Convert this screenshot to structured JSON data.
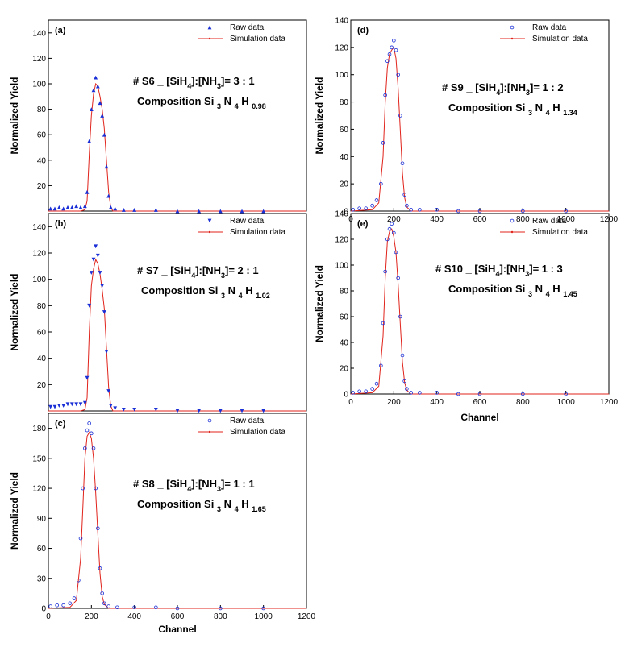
{
  "chart_data": [
    {
      "panel": "(a)",
      "type": "scatter",
      "ylabel": "Normalized Yield",
      "xlabel": "",
      "xlim": [
        0,
        1200
      ],
      "ylim": [
        0,
        150
      ],
      "xticks": [],
      "yticks": [
        20,
        40,
        60,
        80,
        100,
        120,
        140
      ],
      "raw_marker": "triangle-up",
      "legend": {
        "raw": "Raw data",
        "sim": "Simulation data",
        "position": "top-right"
      },
      "annotation": {
        "pre": "# S6 _ [SiH",
        "sub1": "4",
        "mid": "]:[NH",
        "sub2": "3",
        "post": "]= 3 : 1"
      },
      "composition": {
        "pre": "Composition Si ",
        "s1": "3",
        "n": " N ",
        "s2": "4",
        "h": " H ",
        "s3": "0.98"
      },
      "peak": {
        "center": 225,
        "height": 100,
        "left_edge": 180,
        "right_edge": 285
      },
      "series": [
        {
          "name": "Raw data",
          "x": [
            10,
            30,
            50,
            70,
            90,
            110,
            130,
            150,
            170,
            180,
            190,
            200,
            210,
            220,
            230,
            240,
            250,
            260,
            270,
            280,
            290,
            310,
            350,
            400,
            500,
            600,
            700,
            800,
            900,
            1000
          ],
          "y": [
            2,
            2,
            3,
            2,
            3,
            3,
            4,
            3,
            4,
            15,
            55,
            80,
            95,
            105,
            98,
            85,
            75,
            60,
            35,
            12,
            3,
            2,
            1,
            1,
            1,
            0,
            0,
            0,
            0,
            0
          ]
        },
        {
          "name": "Simulation data",
          "x": [
            0,
            100,
            150,
            170,
            180,
            190,
            200,
            210,
            220,
            230,
            240,
            250,
            260,
            270,
            280,
            290,
            300,
            400,
            1200
          ],
          "y": [
            0,
            0,
            0,
            1,
            8,
            45,
            75,
            92,
            100,
            98,
            90,
            80,
            65,
            40,
            15,
            3,
            0,
            0,
            0
          ]
        }
      ]
    },
    {
      "panel": "(b)",
      "type": "scatter",
      "ylabel": "Normalized Yield",
      "xlabel": "",
      "xlim": [
        0,
        1200
      ],
      "ylim": [
        0,
        150
      ],
      "xticks": [],
      "yticks": [
        20,
        40,
        60,
        80,
        100,
        120,
        140
      ],
      "raw_marker": "triangle-down",
      "legend": {
        "raw": "Raw data",
        "sim": "Simulation data",
        "position": "top-right"
      },
      "annotation": {
        "pre": "# S7 _ [SiH",
        "sub1": "4",
        "mid": "]:[NH",
        "sub2": "3",
        "post": "]= 2 : 1"
      },
      "composition": {
        "pre": "Composition Si ",
        "s1": "3",
        "n": " N ",
        "s2": "4",
        "h": " H ",
        "s3": "1.02"
      },
      "series": [
        {
          "name": "Raw data",
          "x": [
            10,
            30,
            50,
            70,
            90,
            110,
            130,
            150,
            170,
            180,
            190,
            200,
            210,
            220,
            230,
            240,
            250,
            260,
            270,
            280,
            290,
            310,
            350,
            400,
            500,
            600,
            700,
            800,
            900,
            1000
          ],
          "y": [
            3,
            3,
            4,
            4,
            5,
            5,
            5,
            5,
            6,
            25,
            80,
            105,
            115,
            125,
            118,
            105,
            95,
            75,
            45,
            15,
            4,
            2,
            1,
            1,
            1,
            0,
            0,
            0,
            0,
            0
          ]
        },
        {
          "name": "Simulation data",
          "x": [
            0,
            100,
            150,
            170,
            180,
            190,
            200,
            210,
            220,
            230,
            240,
            250,
            260,
            270,
            280,
            290,
            300,
            400,
            1200
          ],
          "y": [
            0,
            0,
            0,
            1,
            10,
            60,
            95,
            108,
            115,
            112,
            104,
            92,
            78,
            48,
            18,
            4,
            0,
            0,
            0
          ]
        }
      ]
    },
    {
      "panel": "(c)",
      "type": "scatter",
      "ylabel": "Normalized Yield",
      "xlabel": "Channel",
      "xlim": [
        0,
        1200
      ],
      "ylim": [
        0,
        195
      ],
      "xticks": [
        0,
        200,
        400,
        600,
        800,
        1000,
        1200
      ],
      "yticks": [
        0,
        30,
        60,
        90,
        120,
        150,
        180
      ],
      "raw_marker": "circle-open",
      "legend": {
        "raw": "Raw data",
        "sim": "Simulation data",
        "position": "top-right"
      },
      "annotation": {
        "pre": "# S8 _ [SiH",
        "sub1": "4",
        "mid": "]:[NH",
        "sub2": "3",
        "post": "]= 1 : 1"
      },
      "composition": {
        "pre": "Composition Si ",
        "s1": "3",
        "n": " N ",
        "s2": "4",
        "h": " H ",
        "s3": "1.65"
      },
      "series": [
        {
          "name": "Raw data",
          "x": [
            10,
            40,
            70,
            100,
            120,
            140,
            150,
            160,
            170,
            180,
            190,
            200,
            210,
            220,
            230,
            240,
            250,
            260,
            280,
            320,
            400,
            500,
            600,
            800,
            1000
          ],
          "y": [
            2,
            3,
            3,
            5,
            10,
            28,
            70,
            120,
            160,
            178,
            185,
            175,
            160,
            120,
            80,
            40,
            15,
            5,
            2,
            1,
            1,
            1,
            0,
            0,
            0
          ]
        },
        {
          "name": "Simulation data",
          "x": [
            0,
            100,
            130,
            150,
            160,
            170,
            180,
            190,
            200,
            210,
            220,
            230,
            240,
            250,
            260,
            280,
            300,
            1200
          ],
          "y": [
            0,
            1,
            8,
            50,
            100,
            150,
            172,
            176,
            170,
            150,
            115,
            75,
            35,
            12,
            4,
            0,
            0,
            0
          ]
        }
      ]
    },
    {
      "panel": "(d)",
      "type": "scatter",
      "ylabel": "Normalized Yield",
      "xlabel": "",
      "xlim": [
        0,
        1200
      ],
      "ylim": [
        0,
        140
      ],
      "xticks": [
        0,
        200,
        400,
        600,
        800,
        1000,
        1200
      ],
      "yticks": [
        0,
        20,
        40,
        60,
        80,
        100,
        120,
        140
      ],
      "raw_marker": "circle-open",
      "legend": {
        "raw": "Raw data",
        "sim": "Simulation data",
        "position": "top-right"
      },
      "annotation": {
        "pre": "# S9 _ [SiH",
        "sub1": "4",
        "mid": "]:[NH",
        "sub2": "3",
        "post": "]= 1 : 2"
      },
      "composition": {
        "pre": "Composition Si ",
        "s1": "3",
        "n": " N ",
        "s2": "4",
        "h": " H ",
        "s3": "1.34"
      },
      "series": [
        {
          "name": "Raw data",
          "x": [
            10,
            40,
            70,
            100,
            120,
            140,
            150,
            160,
            170,
            180,
            190,
            200,
            210,
            220,
            230,
            240,
            250,
            260,
            280,
            320,
            400,
            500,
            600,
            800,
            1000
          ],
          "y": [
            1,
            2,
            2,
            4,
            8,
            20,
            50,
            85,
            110,
            115,
            120,
            125,
            118,
            100,
            70,
            35,
            12,
            4,
            1,
            1,
            1,
            0,
            0,
            0,
            0
          ]
        },
        {
          "name": "Simulation data",
          "x": [
            0,
            100,
            130,
            150,
            160,
            170,
            180,
            190,
            200,
            210,
            220,
            230,
            240,
            250,
            260,
            280,
            300,
            1200
          ],
          "y": [
            0,
            1,
            6,
            40,
            80,
            105,
            115,
            118,
            120,
            112,
            90,
            60,
            28,
            10,
            3,
            0,
            0,
            0
          ]
        }
      ]
    },
    {
      "panel": "(e)",
      "type": "scatter",
      "ylabel": "Normalized Yield",
      "xlabel": "Channel",
      "xlim": [
        0,
        1200
      ],
      "ylim": [
        0,
        140
      ],
      "xticks": [
        0,
        200,
        400,
        600,
        800,
        1000,
        1200
      ],
      "yticks": [
        0,
        20,
        40,
        60,
        80,
        100,
        120,
        140
      ],
      "raw_marker": "circle-open",
      "legend": {
        "raw": "Raw data",
        "sim": "Simulation data",
        "position": "top-right"
      },
      "annotation": {
        "pre": "# S10 _ [SiH",
        "sub1": "4",
        "mid": "]:[NH",
        "sub2": "3",
        "post": "]= 1 : 3"
      },
      "composition": {
        "pre": "Composition Si ",
        "s1": "3",
        "n": " N ",
        "s2": "4",
        "h": " H ",
        "s3": "1.45"
      },
      "series": [
        {
          "name": "Raw data",
          "x": [
            10,
            40,
            70,
            100,
            120,
            140,
            150,
            160,
            170,
            180,
            190,
            200,
            210,
            220,
            230,
            240,
            250,
            260,
            280,
            320,
            400,
            500,
            600,
            800,
            1000
          ],
          "y": [
            1,
            2,
            2,
            4,
            8,
            22,
            55,
            95,
            120,
            128,
            132,
            125,
            110,
            90,
            60,
            30,
            10,
            4,
            1,
            1,
            1,
            0,
            0,
            0,
            0
          ]
        },
        {
          "name": "Simulation data",
          "x": [
            0,
            100,
            130,
            150,
            160,
            170,
            180,
            190,
            200,
            210,
            220,
            230,
            240,
            250,
            260,
            280,
            300,
            1200
          ],
          "y": [
            0,
            1,
            6,
            45,
            90,
            118,
            126,
            128,
            122,
            110,
            85,
            55,
            25,
            9,
            3,
            0,
            0,
            0
          ]
        }
      ]
    }
  ],
  "colors": {
    "raw": "#1a2fd6",
    "sim": "#e0231b",
    "axis": "#000000"
  }
}
